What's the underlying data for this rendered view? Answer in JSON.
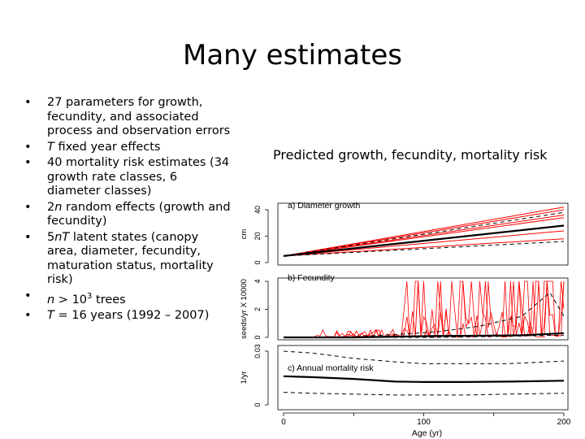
{
  "slide": {
    "title": "Many estimates",
    "bullets": [
      {
        "pre": "",
        "em": "",
        "mid": "",
        "sup": "",
        "post": "27 parameters for growth, fecundity, and associated process and observation errors"
      },
      {
        "pre": "",
        "em": "T",
        "mid": " fixed year effects",
        "sup": "",
        "post": ""
      },
      {
        "pre": "",
        "em": "",
        "mid": "",
        "sup": "",
        "post": "40 mortality risk estimates (34 growth rate classes, 6 diameter classes)"
      },
      {
        "pre": "2",
        "em": "n",
        "mid": " random effects (growth and fecundity)",
        "sup": "",
        "post": ""
      },
      {
        "pre": "5",
        "em": "nT",
        "mid": " latent states (canopy area, diameter, fecundity, maturation status, mortality risk)",
        "sup": "",
        "post": ""
      },
      {
        "pre": "",
        "em": "n",
        "mid": " > 10",
        "sup": "3",
        "post": " trees"
      },
      {
        "pre": "",
        "em": "T",
        "mid": " = 16 years (1992 – 2007)",
        "sup": "",
        "post": ""
      }
    ],
    "bullet_symbol": "•",
    "chart_caption": "Predicted growth, fecundity, mortality risk"
  },
  "chart_data": [
    {
      "type": "line",
      "title": "a) Diameter growth",
      "xlabel": "",
      "ylabel": "cm",
      "xlim": [
        0,
        200
      ],
      "ylim": [
        0,
        40
      ],
      "yticks": [
        "0",
        "20",
        "40"
      ],
      "x": [
        0,
        200
      ],
      "series": [
        {
          "name": "mean",
          "color": "#000000",
          "style": "solid-thick",
          "values": [
            5,
            28
          ]
        },
        {
          "name": "upper",
          "color": "#000000",
          "style": "dashed",
          "values": [
            5,
            38
          ]
        },
        {
          "name": "lower",
          "color": "#000000",
          "style": "dashed",
          "values": [
            5,
            16
          ]
        },
        {
          "name": "tree-1",
          "color": "#ff0000",
          "style": "solid",
          "values": [
            5,
            42
          ]
        },
        {
          "name": "tree-2",
          "color": "#ff0000",
          "style": "solid",
          "values": [
            5,
            40
          ]
        },
        {
          "name": "tree-3",
          "color": "#ff0000",
          "style": "solid",
          "values": [
            5,
            36
          ]
        },
        {
          "name": "tree-4",
          "color": "#ff0000",
          "style": "solid",
          "values": [
            5,
            34
          ]
        },
        {
          "name": "tree-5",
          "color": "#ff0000",
          "style": "solid",
          "values": [
            5,
            24
          ]
        },
        {
          "name": "tree-6",
          "color": "#ff0000",
          "style": "solid",
          "values": [
            5,
            18
          ]
        }
      ]
    },
    {
      "type": "line",
      "title": "b) Fecundity",
      "xlabel": "",
      "ylabel": "seeds/yr X 10000",
      "xlim": [
        0,
        200
      ],
      "ylim": [
        0,
        4
      ],
      "yticks": [
        "0",
        "2",
        "4"
      ],
      "x": [
        0,
        50,
        80,
        110,
        140,
        170,
        190,
        200
      ],
      "series": [
        {
          "name": "mean",
          "color": "#000000",
          "style": "solid-thick",
          "values": [
            0,
            0,
            0.05,
            0.1,
            0.12,
            0.15,
            0.25,
            0.3
          ]
        },
        {
          "name": "upper",
          "color": "#000000",
          "style": "dashed",
          "values": [
            0,
            0.05,
            0.2,
            0.4,
            0.8,
            1.5,
            3.2,
            1.5
          ]
        },
        {
          "name": "lower",
          "color": "#000000",
          "style": "dashed",
          "values": [
            0,
            0,
            0,
            0,
            0.05,
            0.1,
            0.15,
            0.15
          ]
        },
        {
          "name": "individual-trees",
          "color": "#ff0000",
          "style": "solid",
          "note": "highly variable individual fecundity traces, frequently reaching the upper limit of 4 after age ~85"
        }
      ]
    },
    {
      "type": "line",
      "title": "c) Annual mortality risk",
      "xlabel": "Age (yr)",
      "ylabel": "1/yr",
      "xlim": [
        0,
        200
      ],
      "ylim": [
        0,
        0.03
      ],
      "yticks": [
        "0",
        "0.03"
      ],
      "xticks": [
        "0",
        "100",
        "200"
      ],
      "x": [
        0,
        20,
        50,
        80,
        100,
        130,
        160,
        200
      ],
      "series": [
        {
          "name": "mean",
          "color": "#000000",
          "style": "solid-thick",
          "values": [
            0.016,
            0.0155,
            0.0145,
            0.013,
            0.0128,
            0.0128,
            0.013,
            0.0135
          ]
        },
        {
          "name": "upper",
          "color": "#000000",
          "style": "dashed",
          "values": [
            0.03,
            0.029,
            0.026,
            0.024,
            0.023,
            0.023,
            0.023,
            0.0245
          ]
        },
        {
          "name": "lower",
          "color": "#000000",
          "style": "dashed",
          "values": [
            0.007,
            0.0065,
            0.006,
            0.0055,
            0.0055,
            0.0055,
            0.006,
            0.0065
          ]
        }
      ]
    }
  ]
}
